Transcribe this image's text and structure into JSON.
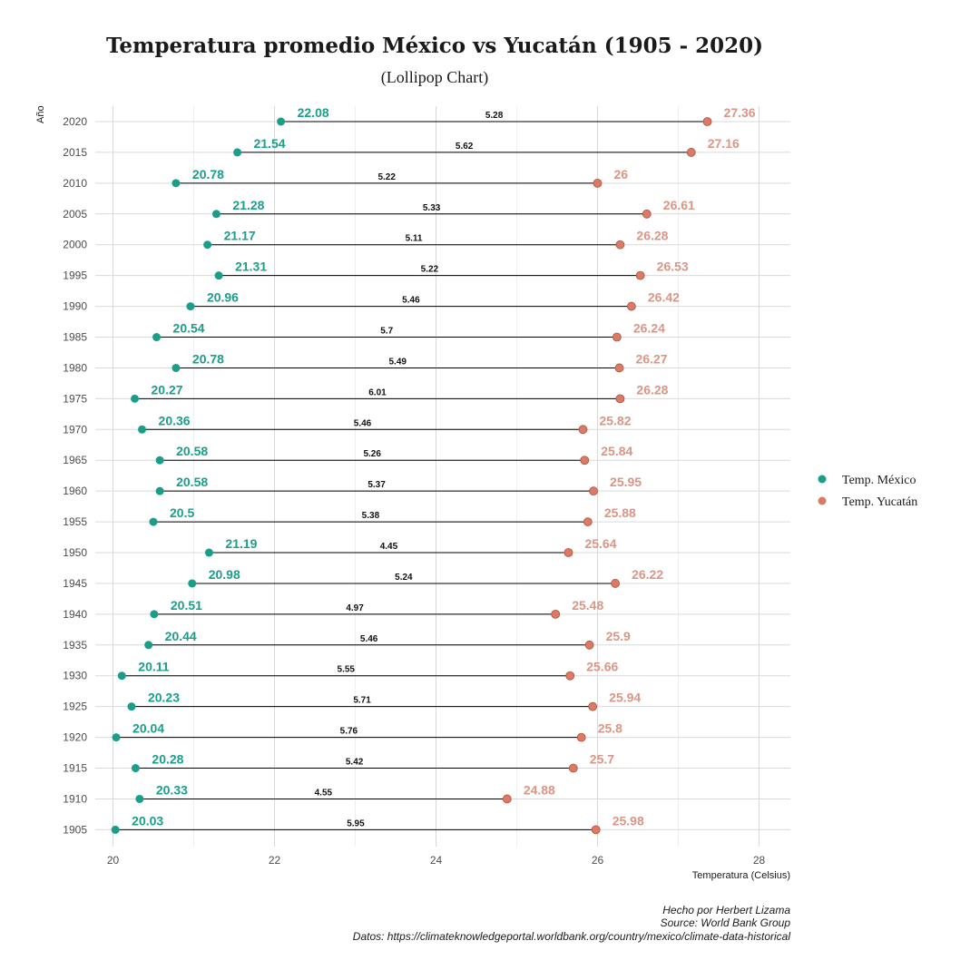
{
  "chart_data": {
    "type": "lollipop",
    "title": "Temperatura promedio México vs Yucatán (1905 - 2020)",
    "subtitle": "(Lollipop Chart)",
    "xlabel": "Temperatura (Celsius)",
    "ylabel": "Año",
    "xlim": [
      19.7,
      28.4
    ],
    "x_ticks": [
      20,
      22,
      24,
      26,
      28
    ],
    "grid": true,
    "legend_position": "right",
    "categories": [
      "1905",
      "1910",
      "1915",
      "1920",
      "1925",
      "1930",
      "1935",
      "1940",
      "1945",
      "1950",
      "1955",
      "1960",
      "1965",
      "1970",
      "1975",
      "1980",
      "1985",
      "1990",
      "1995",
      "2000",
      "2005",
      "2010",
      "2015",
      "2020"
    ],
    "series": [
      {
        "name": "Temp. México",
        "color": "#1a9e8a",
        "values": [
          20.03,
          20.33,
          20.28,
          20.04,
          20.23,
          20.11,
          20.44,
          20.51,
          20.98,
          21.19,
          20.5,
          20.58,
          20.58,
          20.36,
          20.27,
          20.78,
          20.54,
          20.96,
          21.31,
          21.17,
          21.28,
          20.78,
          21.54,
          22.08
        ]
      },
      {
        "name": "Temp. Yucatán",
        "color": "#d97b66",
        "values": [
          25.98,
          24.88,
          25.7,
          25.8,
          25.94,
          25.66,
          25.9,
          25.48,
          26.22,
          25.64,
          25.88,
          25.95,
          25.84,
          25.82,
          26.28,
          26.27,
          26.24,
          26.42,
          26.53,
          26.28,
          26.61,
          26,
          27.16,
          27.36
        ]
      }
    ],
    "differences": [
      5.95,
      4.55,
      5.42,
      5.76,
      5.71,
      5.55,
      5.46,
      4.97,
      5.24,
      4.45,
      5.38,
      5.37,
      5.26,
      5.46,
      6.01,
      5.49,
      5.7,
      5.46,
      5.22,
      5.11,
      5.33,
      5.22,
      5.62,
      5.28
    ],
    "caption": [
      "Hecho por Herbert Lizama",
      "Source: World Bank Group",
      "Datos: https://climateknowledgeportal.worldbank.org/country/mexico/climate-data-historical"
    ]
  }
}
